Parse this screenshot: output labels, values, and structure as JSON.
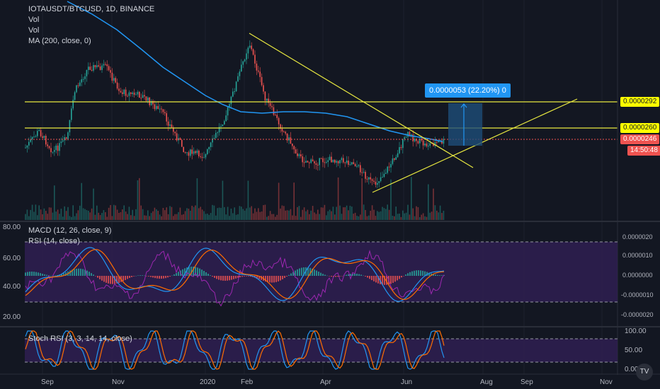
{
  "header": {
    "symbol_line": "IOTAUSDT/BTCUSD, 1D, BINANCE",
    "indicators": [
      "Vol",
      "Vol",
      "MA (200, close, 0)"
    ]
  },
  "measure_label": "0.0000053 (22.20%) 0",
  "price_axis": {
    "labels": [
      "0.0000292",
      "0.0000260",
      "0.0000246"
    ],
    "countdown": "14:50:48"
  },
  "panes": {
    "macd_title": "MACD (12, 26, close, 9)",
    "rsi_title": "RSI (14, close)",
    "stoch_title": "Stoch RSI (3, 3, 14, 14, close)",
    "rsi_axis": [
      "80.00",
      "60.00",
      "40.00",
      "20.00"
    ],
    "macd_axis": [
      "0.0000020",
      "0.0000010",
      "0.0000000",
      "-0.0000010",
      "-0.0000020"
    ],
    "stoch_axis": [
      "100.00",
      "50.00",
      "0.00"
    ]
  },
  "time_axis": [
    "Sep",
    "Nov",
    "2020",
    "Feb",
    "Apr",
    "Jun",
    "Aug",
    "Sep",
    "Nov"
  ],
  "colors": {
    "background": "#131722",
    "up": "#26a69a",
    "down": "#ef5350",
    "ma": "#2196f3",
    "trendline": "#e8e840",
    "pane_fill": "#2d1e4f",
    "rsi_line": "#9c27b0",
    "measure_box": "#1e4e79"
  },
  "logo_icon": "tradingview-logo-icon"
}
